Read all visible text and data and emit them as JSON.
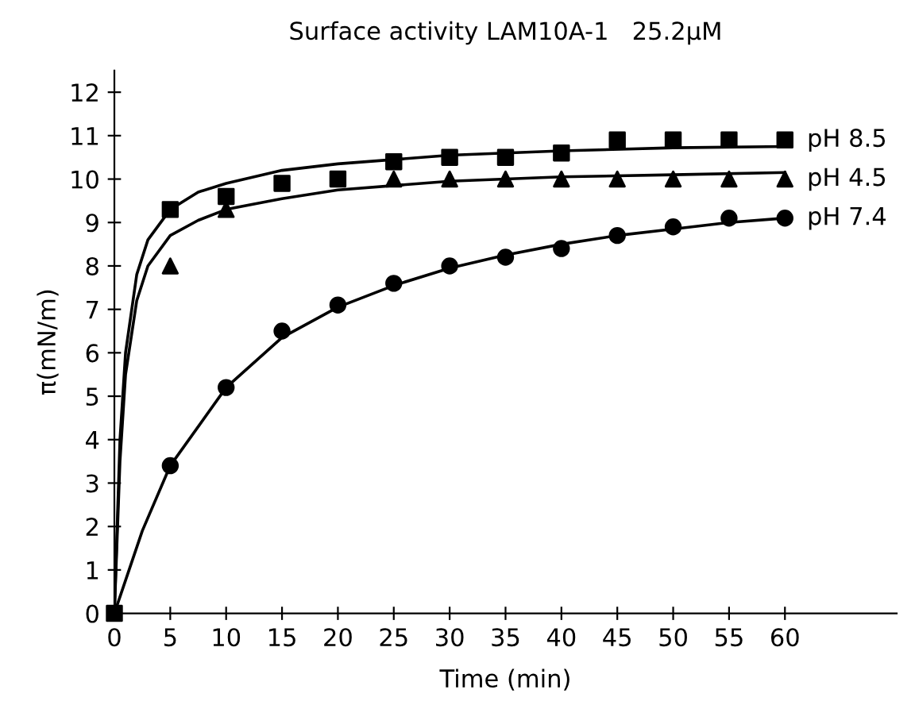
{
  "chart_data": {
    "type": "scatter",
    "title": "Surface activity LAM10A-1   25.2μM",
    "xlabel": "Time (min)",
    "ylabel": "π(mN/m)",
    "x": [
      0,
      5,
      10,
      15,
      20,
      25,
      30,
      35,
      40,
      45,
      50,
      55,
      60
    ],
    "series": [
      {
        "name": "pH 8.5",
        "color": "#000000",
        "marker": "square",
        "values": [
          0,
          9.3,
          9.6,
          9.9,
          10.0,
          10.4,
          10.5,
          10.5,
          10.6,
          10.9,
          10.9,
          10.9,
          10.9
        ]
      },
      {
        "name": "pH 4.5",
        "color": "#000000",
        "marker": "triangle",
        "values": [
          null,
          8.0,
          9.3,
          null,
          null,
          10.0,
          10.0,
          10.0,
          10.0,
          10.0,
          10.0,
          10.0,
          10.0
        ]
      },
      {
        "name": "pH 7.4",
        "color": "#000000",
        "marker": "circle",
        "values": [
          null,
          3.4,
          5.2,
          6.5,
          7.1,
          7.6,
          8.0,
          8.2,
          8.4,
          8.7,
          8.9,
          9.1,
          9.1
        ]
      },
      {
        "type": "line",
        "color": "#000000",
        "line_style": "solid",
        "x": [
          0,
          0.5,
          1,
          2,
          3,
          5,
          7.5,
          10,
          15,
          20,
          30,
          40,
          50,
          60
        ],
        "values": [
          0,
          4.0,
          6.0,
          7.8,
          8.6,
          9.3,
          9.7,
          9.9,
          10.2,
          10.35,
          10.55,
          10.65,
          10.72,
          10.75
        ]
      },
      {
        "type": "line",
        "color": "#000000",
        "line_style": "solid",
        "x": [
          0,
          0.5,
          1,
          2,
          3,
          5,
          7.5,
          10,
          15,
          20,
          30,
          40,
          50,
          60
        ],
        "values": [
          0,
          3.5,
          5.5,
          7.2,
          8.0,
          8.7,
          9.05,
          9.3,
          9.55,
          9.75,
          9.95,
          10.05,
          10.1,
          10.15
        ]
      },
      {
        "type": "line",
        "color": "#000000",
        "line_style": "solid",
        "x": [
          0,
          2.5,
          5,
          10,
          15,
          20,
          25,
          30,
          35,
          40,
          45,
          50,
          55,
          60
        ],
        "values": [
          0,
          1.9,
          3.4,
          5.2,
          6.35,
          7.05,
          7.55,
          7.95,
          8.25,
          8.5,
          8.7,
          8.85,
          9.0,
          9.1
        ]
      }
    ],
    "xlim": [
      0,
      70
    ],
    "ylim": [
      0,
      12.5
    ],
    "xticks": [
      0,
      5,
      10,
      15,
      20,
      25,
      30,
      35,
      40,
      45,
      50,
      55,
      60
    ],
    "yticks": [
      0,
      1,
      2,
      3,
      4,
      5,
      6,
      7,
      8,
      9,
      10,
      11,
      12
    ],
    "grid": false,
    "legend": false
  }
}
